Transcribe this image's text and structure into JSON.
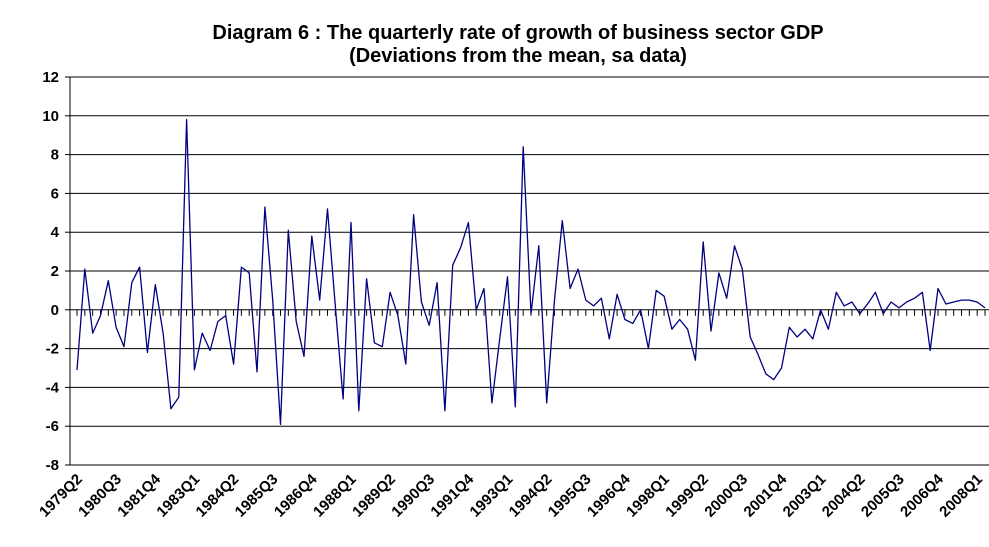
{
  "chart_data": {
    "type": "line",
    "title": "Diagram 6 : The quarterly rate of growth of business sector GDP",
    "subtitle": "(Deviations from the mean, sa data)",
    "xlabel": "",
    "ylabel": "",
    "ylim": [
      -8,
      12
    ],
    "yticks": [
      -8,
      -6,
      -4,
      -2,
      0,
      2,
      4,
      6,
      8,
      10,
      12
    ],
    "grid": true,
    "legend": "none",
    "line_color": "#000080",
    "x_start": "1979Q2",
    "x_tick_labels": [
      "1979Q2",
      "1980Q3",
      "1981Q4",
      "1983Q1",
      "1984Q2",
      "1985Q3",
      "1986Q4",
      "1988Q1",
      "1989Q2",
      "1990Q3",
      "1991Q4",
      "1993Q1",
      "1994Q2",
      "1995Q3",
      "1996Q4",
      "1998Q1",
      "1999Q2",
      "2000Q3",
      "2001Q4",
      "2003Q1",
      "2004Q2",
      "2005Q3",
      "2006Q4",
      "2008Q1"
    ],
    "series": [
      {
        "values": [
          -3.1,
          2.1,
          -1.2,
          -0.3,
          1.5,
          -0.9,
          -1.9,
          1.4,
          2.2,
          -2.2,
          1.3,
          -1.2,
          -5.1,
          -4.5,
          9.8,
          -3.1,
          -1.2,
          -2.1,
          -0.6,
          -0.3,
          -2.8,
          2.2,
          1.9,
          -3.2,
          5.3,
          0.5,
          -5.9,
          4.1,
          -0.6,
          -2.4,
          3.8,
          0.5,
          5.2,
          0.2,
          -4.6,
          4.5,
          -5.2,
          1.6,
          -1.7,
          -1.9,
          0.9,
          -0.3,
          -2.8,
          4.9,
          0.4,
          -0.8,
          1.4,
          -5.2,
          2.3,
          3.2,
          4.5,
          0.0,
          1.1,
          -4.8,
          -1.5,
          1.7,
          -5.0,
          8.4,
          -0.2,
          3.3,
          -4.8,
          0.5,
          4.6,
          1.1,
          2.1,
          0.5,
          0.2,
          0.6,
          -1.5,
          0.8,
          -0.5,
          -0.7,
          0.0,
          -2.0,
          1.0,
          0.7,
          -1.0,
          -0.5,
          -1.0,
          -2.6,
          3.5,
          -1.1,
          1.9,
          0.6,
          3.3,
          2.1,
          -1.4,
          -2.3,
          -3.3,
          -3.6,
          -3.0,
          -0.9,
          -1.4,
          -1.0,
          -1.5,
          0.0,
          -1.0,
          0.9,
          0.2,
          0.4,
          -0.2,
          0.3,
          0.9,
          -0.2,
          0.4,
          0.1,
          0.4,
          0.6,
          0.9,
          -2.1,
          1.1,
          0.3,
          0.4,
          0.5,
          0.5,
          0.4,
          0.1
        ]
      }
    ]
  }
}
